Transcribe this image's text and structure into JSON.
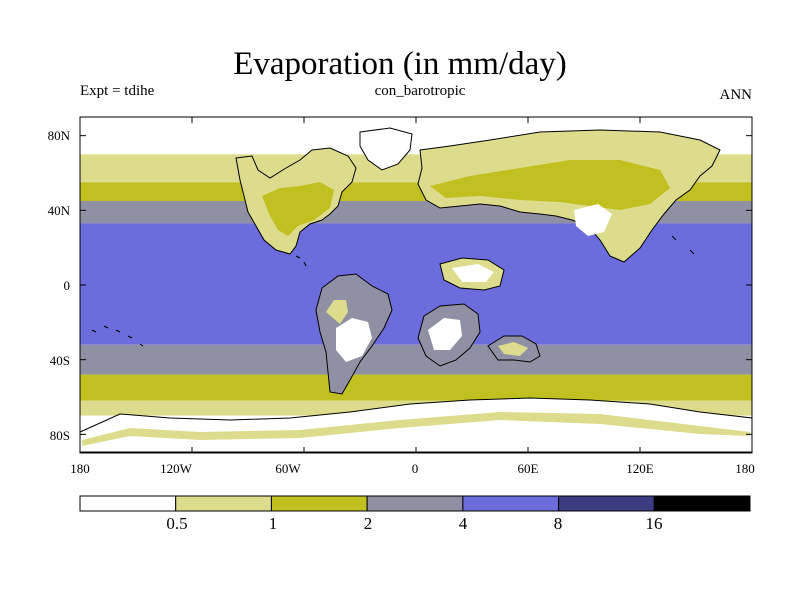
{
  "title": "Evaporation (in mm/day)",
  "subtitle_left": "Expt = tdihe",
  "subtitle_center": "con_barotropic",
  "subtitle_right": "ANN",
  "y_ticks": [
    "80N",
    "40N",
    "0",
    "40S",
    "80S"
  ],
  "x_ticks": [
    "180",
    "120W",
    "60W",
    "0",
    "60E",
    "120E",
    "180"
  ],
  "colorbar": {
    "colors": [
      "#ffffff",
      "#dcdc8c",
      "#c0c020",
      "#9090a4",
      "#6c6cdc",
      "#3c3c84",
      "#000000"
    ],
    "boundaries": [
      "0.5",
      "1",
      "2",
      "4",
      "8",
      "16"
    ]
  },
  "chart_data": {
    "type": "heatmap",
    "title": "Evaporation (in mm/day)",
    "variable": "Evaporation",
    "units": "mm/day",
    "experiment": "tdihe",
    "case": "con_barotropic",
    "season": "ANN",
    "xlim": [
      -180,
      180
    ],
    "ylim": [
      -90,
      90
    ],
    "x_ticks": [
      -180,
      -120,
      -60,
      0,
      60,
      120,
      180
    ],
    "y_ticks": [
      80,
      40,
      0,
      -40,
      -80
    ],
    "levels": [
      0.5,
      1,
      2,
      4,
      8,
      16
    ],
    "zonal_bands": [
      {
        "lat_range": [
          70,
          90
        ],
        "range_mm_day": "<0.5"
      },
      {
        "lat_range": [
          55,
          70
        ],
        "range_mm_day": "0.5-1"
      },
      {
        "lat_range": [
          45,
          55
        ],
        "range_mm_day": "1-2"
      },
      {
        "lat_range": [
          33,
          45
        ],
        "range_mm_day": "2-4"
      },
      {
        "lat_range": [
          -32,
          33
        ],
        "range_mm_day": "4-8"
      },
      {
        "lat_range": [
          -48,
          -32
        ],
        "range_mm_day": "2-4"
      },
      {
        "lat_range": [
          -62,
          -48
        ],
        "range_mm_day": "1-2"
      },
      {
        "lat_range": [
          -70,
          -62
        ],
        "range_mm_day": "0.5-1"
      },
      {
        "lat_range": [
          -90,
          -70
        ],
        "range_mm_day": "<0.5"
      }
    ]
  }
}
